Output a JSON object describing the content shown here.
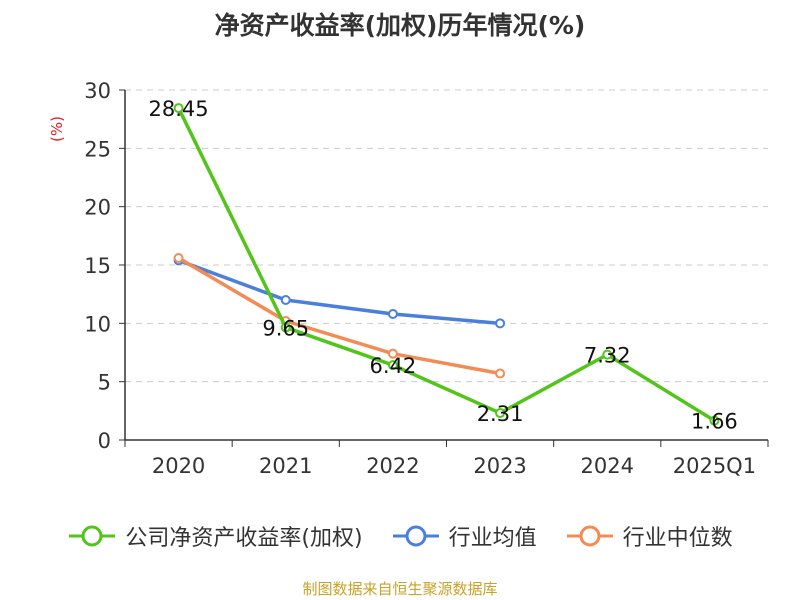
{
  "chart_data": {
    "type": "line",
    "title": "净资产收益率(加权)历年情况(%)",
    "ylabel": "(%)",
    "categories": [
      "2020",
      "2021",
      "2022",
      "2023",
      "2024",
      "2025Q1"
    ],
    "ylim": [
      0,
      30
    ],
    "yticks": [
      0,
      5,
      10,
      15,
      20,
      25,
      30
    ],
    "grid": true,
    "legend_position": "bottom",
    "series": [
      {
        "name": "公司净资产收益率(加权)",
        "color": "#52c41a",
        "values": [
          28.45,
          9.65,
          6.42,
          2.31,
          7.32,
          1.66
        ],
        "labels": [
          "28.45",
          "9.65",
          "6.42",
          "2.31",
          "7.32",
          "1.66"
        ]
      },
      {
        "name": "行业均值",
        "color": "#4a7fdc",
        "values": [
          15.4,
          12.0,
          10.8,
          10.0,
          null,
          null
        ]
      },
      {
        "name": "行业中位数",
        "color": "#f28b54",
        "values": [
          15.6,
          10.2,
          7.4,
          5.7,
          null,
          null
        ]
      }
    ]
  },
  "footer": {
    "source": "制图数据来自恒生聚源数据库"
  }
}
